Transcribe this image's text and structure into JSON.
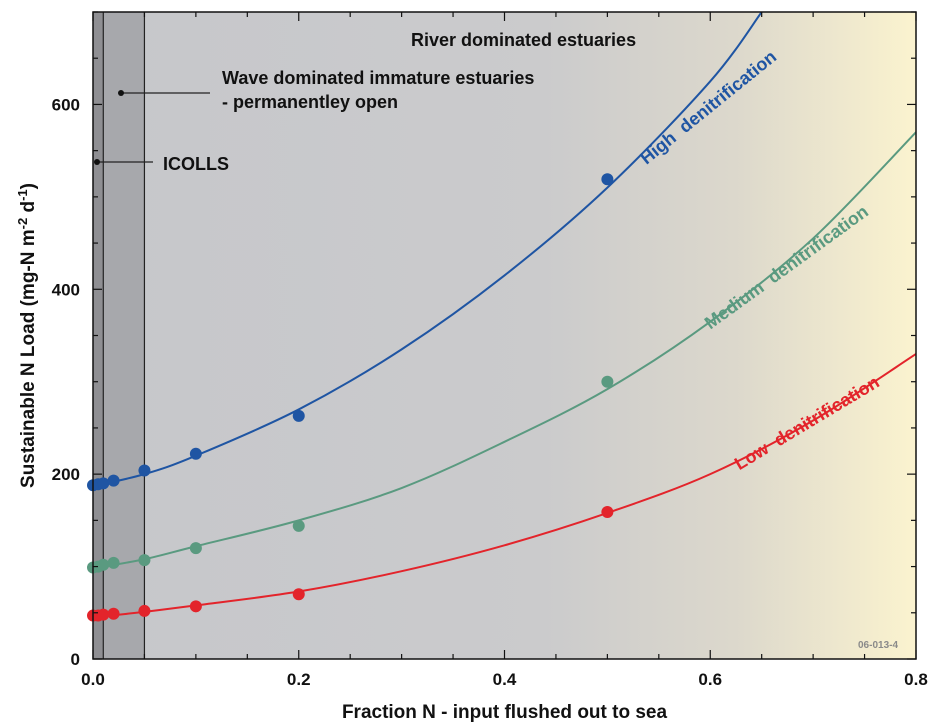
{
  "chart_data": {
    "type": "scatter",
    "xlabel": "Fraction N - input flushed out to sea",
    "ylabel": "Sustainable N Load (mg-N m-2 d-1)",
    "ylabel_parts": {
      "main": "Sustainable N Load (mg-N m",
      "sup1": "-2",
      "mid": " d",
      "sup2": "-1",
      "end": ")"
    },
    "xlim": [
      0,
      0.8
    ],
    "ylim": [
      0,
      700
    ],
    "x_ticks": [
      "0.0",
      "0.2",
      "0.4",
      "0.6",
      "0.8"
    ],
    "y_ticks": [
      "0",
      "200",
      "400",
      "600"
    ],
    "x_tick_values": [
      0,
      0.2,
      0.4,
      0.6,
      0.8
    ],
    "y_tick_values": [
      0,
      200,
      400,
      600
    ],
    "grid": false,
    "regions": [
      {
        "name": "ICOLLS",
        "x_range": [
          0,
          0.01
        ],
        "color": "#8f8f93"
      },
      {
        "name": "Wave dominated immature estuaries - permanentley open",
        "x_range": [
          0.01,
          0.05
        ],
        "color": "#a7a8ac"
      },
      {
        "name": "River dominated estuaries",
        "x_range": [
          0.05,
          0.8
        ],
        "color": "#c9cacc"
      }
    ],
    "annotations": {
      "river": "River dominated estuaries",
      "wave_line1": "Wave dominated immature estuaries",
      "wave_line2": "- permanentley open",
      "icolls": "ICOLLS",
      "figure_id": "06-013-4"
    },
    "series": [
      {
        "name": "High denitrification",
        "color": "#1f55a3",
        "points": {
          "x": [
            0,
            0.005,
            0.01,
            0.02,
            0.05,
            0.1,
            0.2,
            0.5
          ],
          "y": [
            188,
            189,
            190,
            193,
            204,
            222,
            263,
            519
          ]
        },
        "curve": {
          "x": [
            0,
            0.05,
            0.1,
            0.2,
            0.3,
            0.4,
            0.5,
            0.6,
            0.65
          ],
          "y": [
            187,
            200,
            220,
            270,
            335,
            415,
            510,
            625,
            700
          ]
        }
      },
      {
        "name": "Medium denitrification",
        "color": "#5a9a80",
        "points": {
          "x": [
            0,
            0.005,
            0.01,
            0.02,
            0.05,
            0.1,
            0.2,
            0.5
          ],
          "y": [
            99,
            100,
            102,
            104,
            107,
            120,
            144,
            300
          ]
        },
        "curve": {
          "x": [
            0,
            0.05,
            0.1,
            0.2,
            0.3,
            0.4,
            0.5,
            0.6,
            0.7,
            0.8
          ],
          "y": [
            98,
            108,
            122,
            150,
            185,
            235,
            292,
            365,
            455,
            570
          ]
        }
      },
      {
        "name": "Low denitrification",
        "color": "#e3242b",
        "points": {
          "x": [
            0,
            0.005,
            0.01,
            0.02,
            0.05,
            0.1,
            0.2,
            0.5
          ],
          "y": [
            47,
            47,
            48,
            49,
            52,
            57,
            70,
            159
          ]
        },
        "curve": {
          "x": [
            0,
            0.05,
            0.1,
            0.2,
            0.3,
            0.4,
            0.5,
            0.6,
            0.7,
            0.8
          ],
          "y": [
            45,
            51,
            58,
            73,
            95,
            123,
            158,
            200,
            258,
            330
          ]
        }
      }
    ]
  }
}
